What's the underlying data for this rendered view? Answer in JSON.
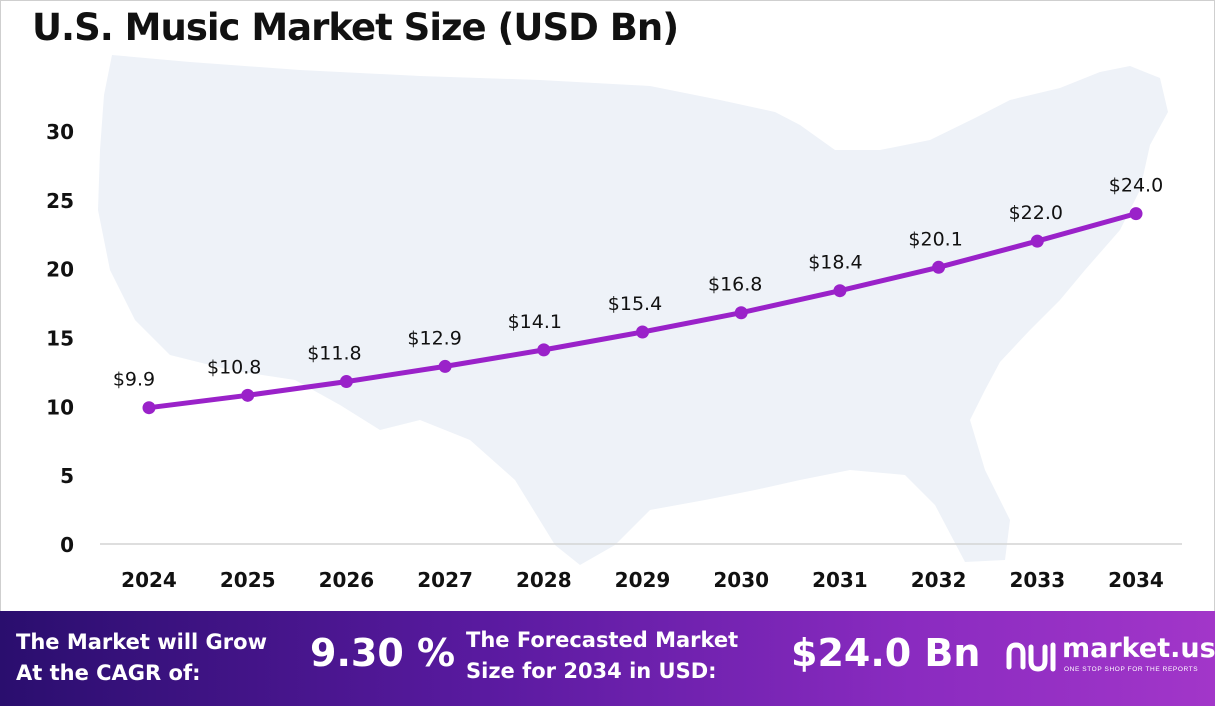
{
  "title": "U.S. Music Market Size (USD Bn)",
  "chart_data": {
    "type": "line",
    "title": "U.S. Music Market Size (USD Bn)",
    "categories": [
      "2024",
      "2025",
      "2026",
      "2027",
      "2028",
      "2029",
      "2030",
      "2031",
      "2032",
      "2033",
      "2034"
    ],
    "values": [
      9.9,
      10.8,
      11.8,
      12.9,
      14.1,
      15.4,
      16.8,
      18.4,
      20.1,
      22.0,
      24.0
    ],
    "data_labels": [
      "$9.9",
      "$10.8",
      "$11.8",
      "$12.9",
      "$14.1",
      "$15.4",
      "$16.8",
      "$18.4",
      "$20.1",
      "$22.0",
      "$24.0"
    ],
    "y_ticks": [
      "0",
      "5",
      "10",
      "15",
      "20",
      "25",
      "30"
    ],
    "ylim": [
      0,
      30
    ],
    "xlabel": "",
    "ylabel": "",
    "grid": false,
    "line_color": "#9a22c9",
    "background_map": "USA map silhouette"
  },
  "footer": {
    "cagr_text": "The Market will Grow\nAt the CAGR of:",
    "cagr_value": "9.30 %",
    "forecast_text": "The Forecasted Market\nSize for 2034 in USD:",
    "forecast_value": "$24.0 Bn",
    "logo_name": "market.us",
    "logo_tagline": "ONE STOP SHOP FOR THE REPORTS"
  },
  "colors": {
    "accent": "#9a22c9",
    "footer_dark": "#2a0e6e",
    "footer_light": "#a236c9",
    "map": "#eef2f8"
  }
}
